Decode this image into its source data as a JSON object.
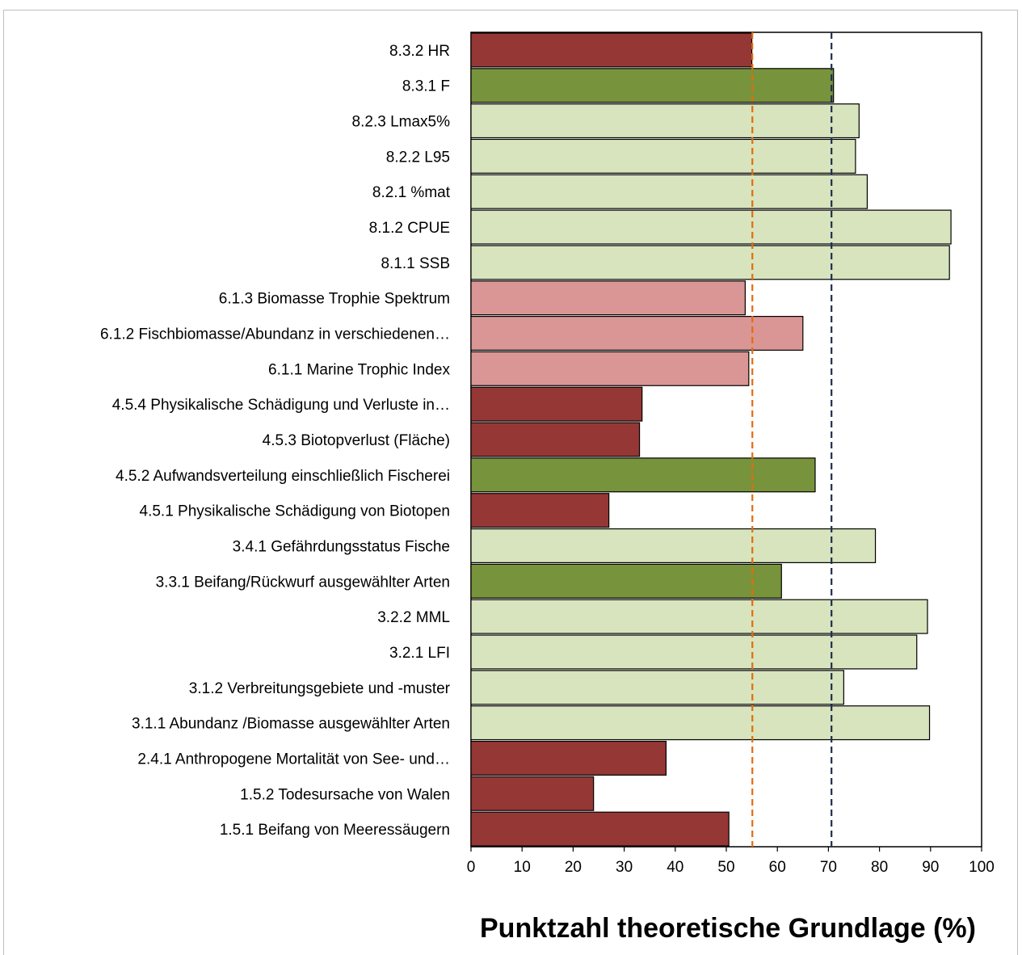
{
  "chart_data": {
    "type": "bar",
    "orientation": "horizontal",
    "title": "",
    "xlabel": "Punktzahl theoretische Grundlage (%)",
    "ylabel": "",
    "xlim": [
      0,
      100
    ],
    "xticks": [
      0,
      10,
      20,
      30,
      40,
      50,
      60,
      70,
      80,
      90,
      100
    ],
    "grid": false,
    "legend": "none",
    "categories": [
      "8.3.2 HR",
      "8.3.1 F",
      "8.2.3 Lmax5% ",
      "8.2.2 L95",
      "8.2.1 %mat",
      "8.1.2 CPUE",
      "8.1.1 SSB",
      "6.1.3 Biomasse Trophie Spektrum ",
      "6.1.2 Fischbiomasse/Abundanz in verschiedenen…",
      "6.1.1  Marine Trophic Index ",
      "4.5.4 Physikalische Schädigung und Verluste in…",
      "4.5.3 Biotopverlust (Fläche)",
      "4.5.2 Aufwandsverteilung einschließlich Fischerei",
      "4.5.1 Physikalische Schädigung von Biotopen",
      "3.4.1 Gefährdungsstatus Fische",
      "3.3.1 Beifang/Rückwurf ausgewählter Arten ",
      "3.2.2 MML ",
      "3.2.1  LFI",
      "3.1.2 Verbreitungsgebiete und -muster",
      "3.1.1  Abundanz /Biomasse ausgewählter Arten",
      "2.4.1 Anthropogene Mortalität von See- und…",
      "1.5.2 Todesursache von Walen",
      "1.5.1 Beifang von Meeressäugern"
    ],
    "values": [
      55,
      71,
      76,
      75.3,
      77.6,
      94,
      93.7,
      53.7,
      65,
      54.4,
      33.5,
      33,
      67.4,
      27,
      79.2,
      60.8,
      89.4,
      87.3,
      73,
      89.8,
      38.2,
      24,
      50.5
    ],
    "bar_colors": [
      "#953735",
      "#77933c",
      "#d7e4bd",
      "#d7e4bd",
      "#d7e4bd",
      "#d7e4bd",
      "#d7e4bd",
      "#d99694",
      "#d99694",
      "#d99694",
      "#953735",
      "#953735",
      "#77933c",
      "#953735",
      "#d7e4bd",
      "#77933c",
      "#d7e4bd",
      "#d7e4bd",
      "#d7e4bd",
      "#d7e4bd",
      "#953735",
      "#953735",
      "#953735"
    ],
    "reference_lines": [
      {
        "value": 55.1,
        "color": "#e46c0a",
        "style": "dashed"
      },
      {
        "value": 70.6,
        "color": "#1f2d4e",
        "style": "dashed"
      }
    ]
  }
}
